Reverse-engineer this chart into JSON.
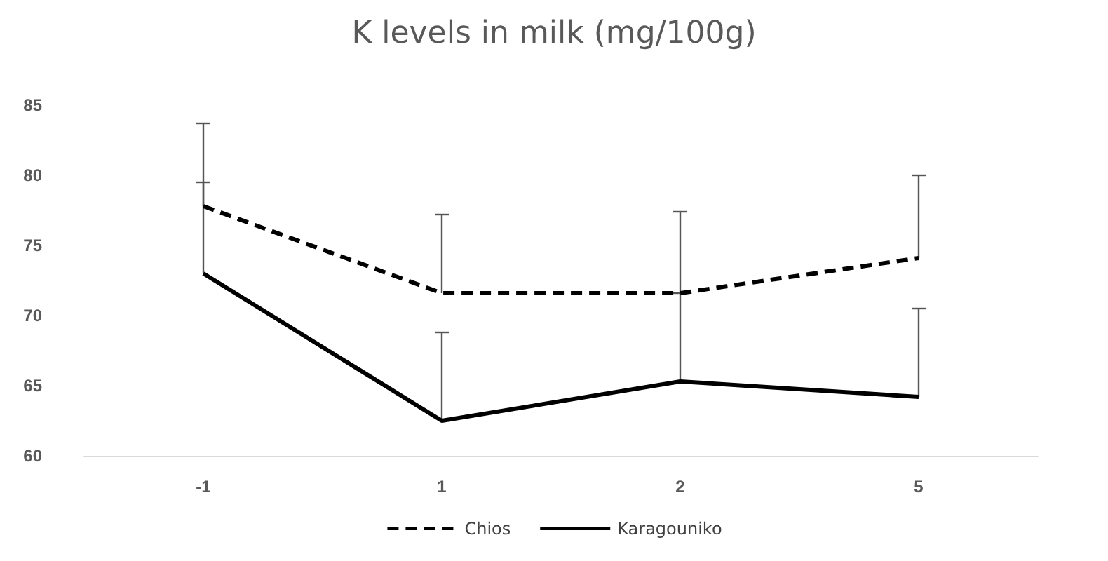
{
  "chart_data": {
    "type": "line",
    "title": "K levels in milk (mg/100g)",
    "categories": [
      "-1",
      "1",
      "2",
      "5"
    ],
    "series": [
      {
        "name": "Chios",
        "color": "#000000",
        "line_style": "dashed",
        "values": [
          77.8,
          71.6,
          71.6,
          74.1
        ],
        "errors": [
          [
            77.8,
            83.7
          ],
          [
            71.6,
            77.2
          ],
          [
            71.6,
            77.4
          ],
          [
            74.1,
            80.0
          ]
        ]
      },
      {
        "name": "Karagouniko",
        "color": "#000000",
        "line_style": "solid",
        "values": [
          73.0,
          62.5,
          65.3,
          64.2
        ],
        "errors": [
          [
            73.0,
            79.5
          ],
          [
            62.5,
            68.8
          ],
          [
            65.3,
            71.6
          ],
          [
            64.2,
            70.5
          ]
        ]
      }
    ],
    "ylim": [
      60,
      85
    ],
    "yticks": [
      60,
      65,
      70,
      75,
      80,
      85
    ],
    "grid": false,
    "legend": "bottom",
    "marker": "none"
  }
}
